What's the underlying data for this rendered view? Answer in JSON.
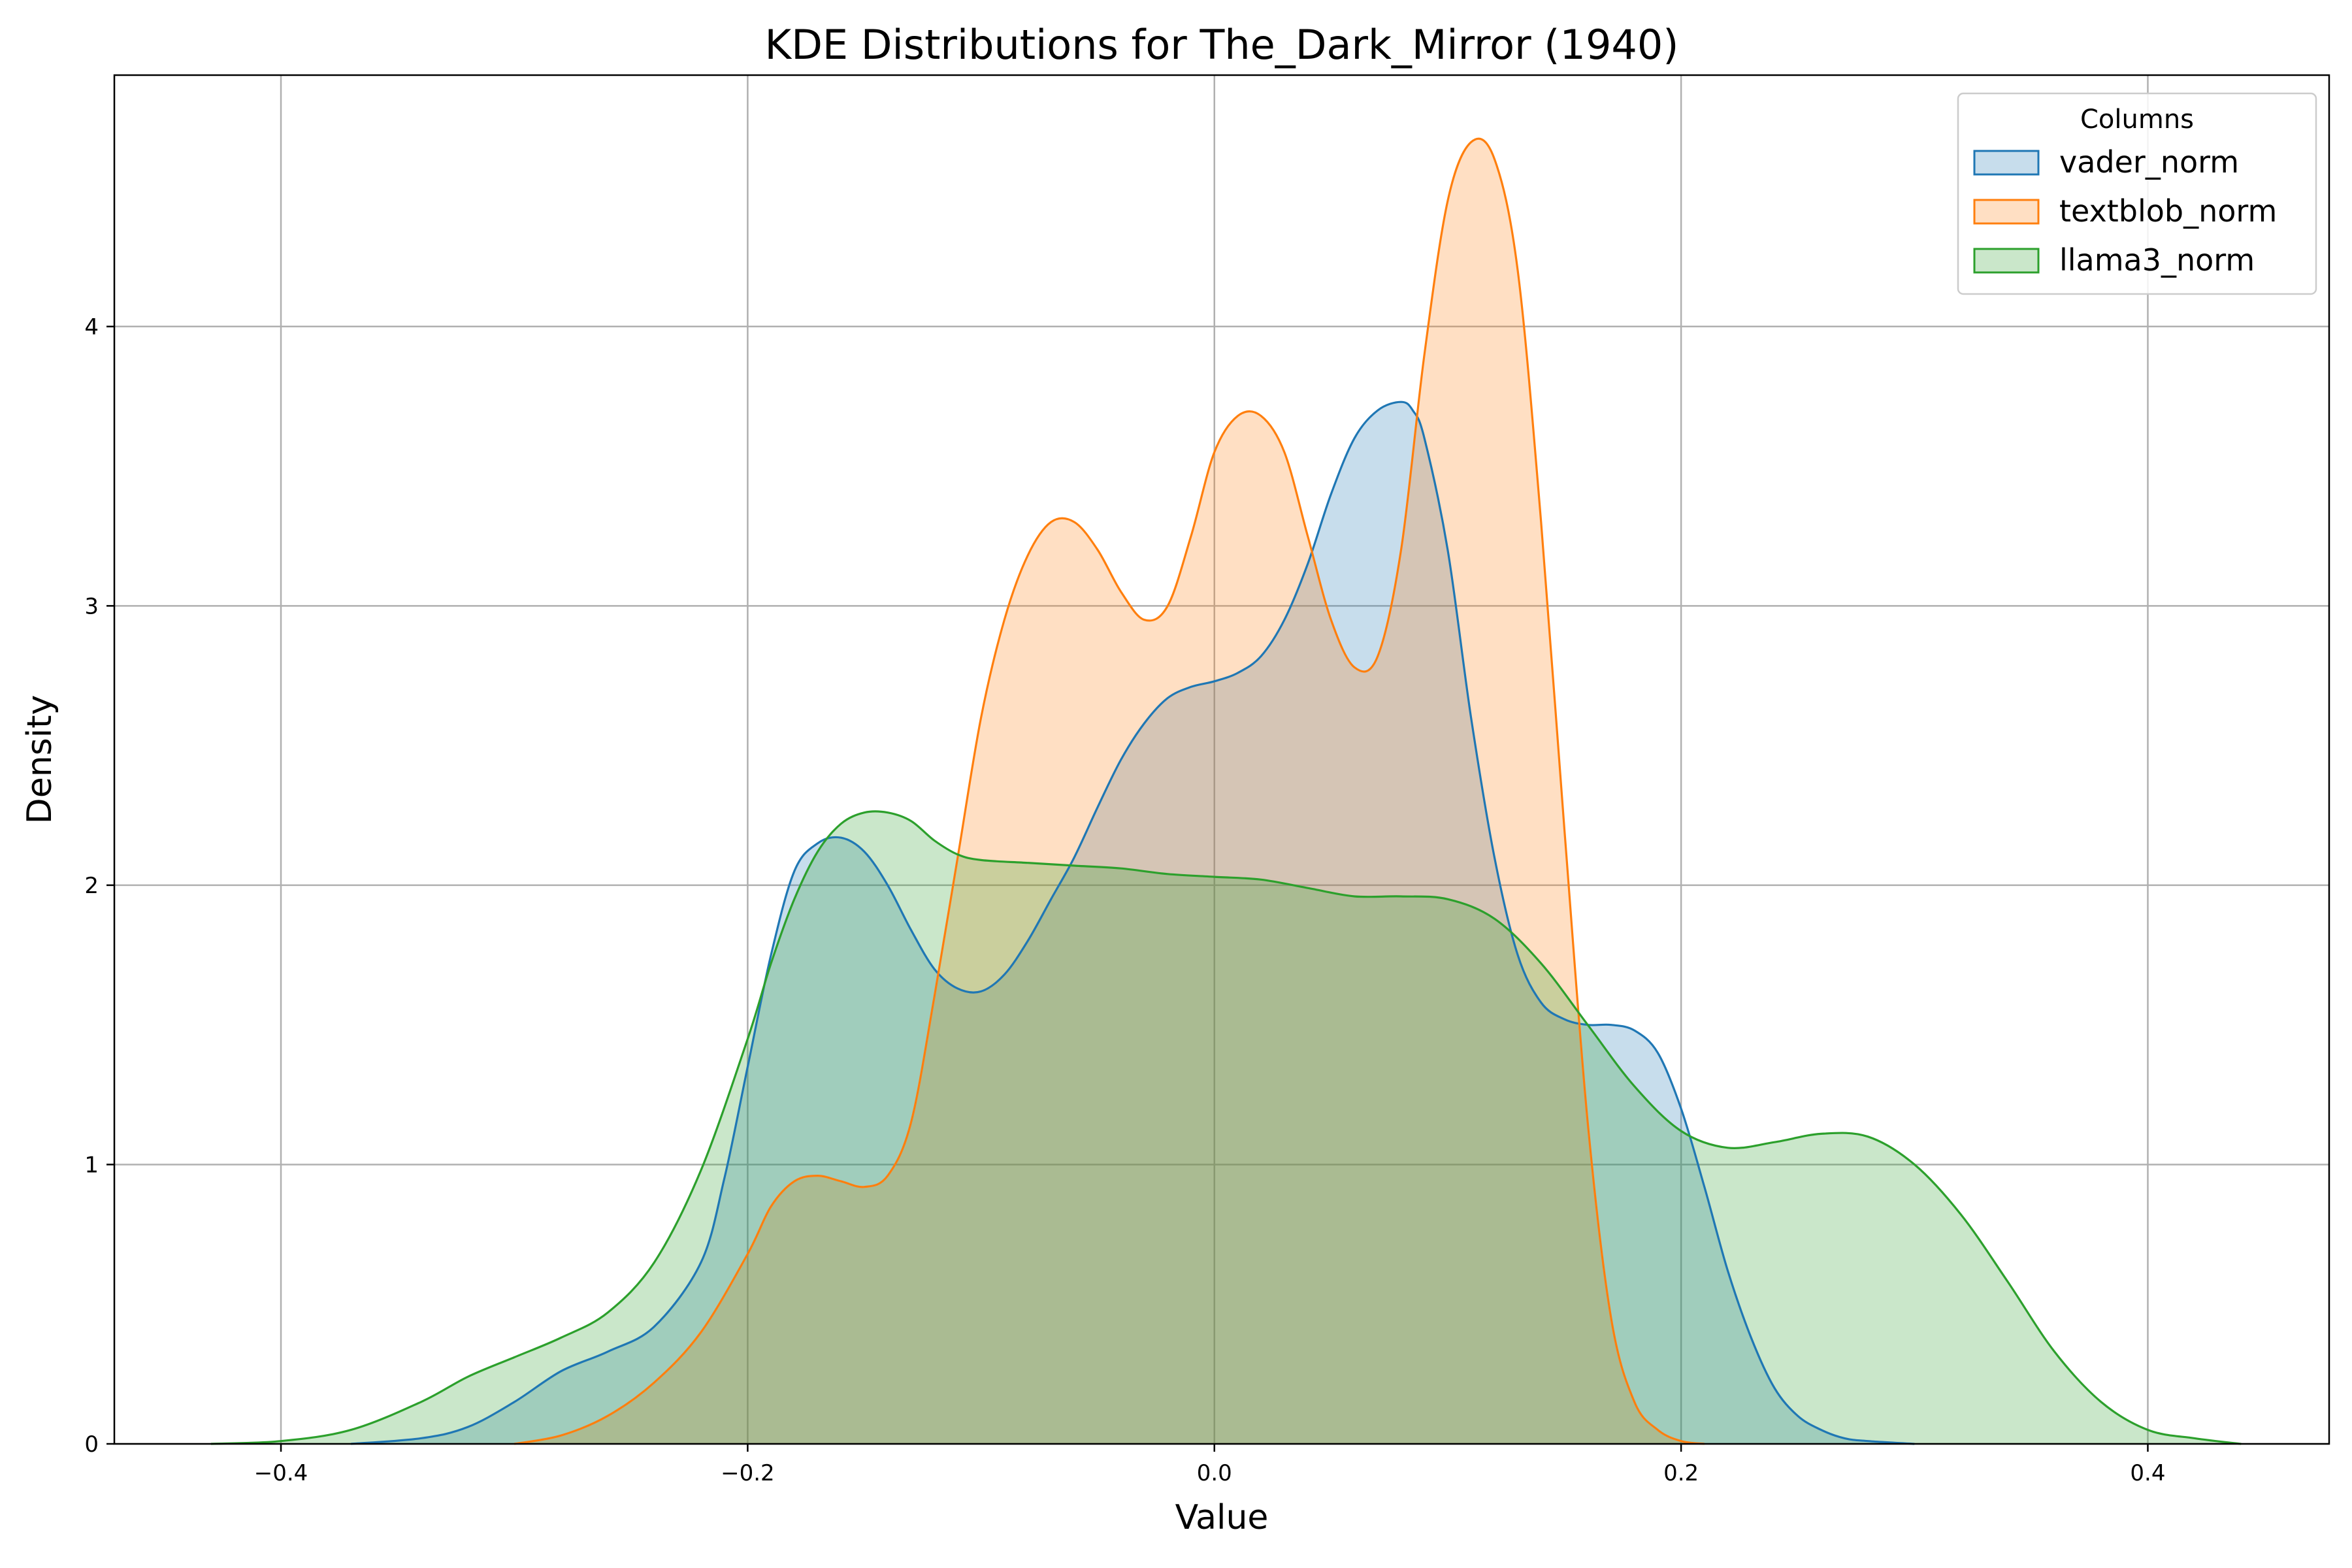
{
  "chart_data": {
    "type": "area",
    "title": "KDE Distributions for The_Dark_Mirror (1940)",
    "xlabel": "Value",
    "ylabel": "Density",
    "xlim": [
      -0.4714,
      0.4777
    ],
    "ylim": [
      0,
      4.9
    ],
    "xticks": [
      -0.4,
      -0.2,
      0.0,
      0.2,
      0.4
    ],
    "xtick_labels": [
      "−0.4",
      "−0.2",
      "0.0",
      "0.2",
      "0.4"
    ],
    "yticks": [
      0,
      1,
      2,
      3,
      4
    ],
    "ytick_labels": [
      "0",
      "1",
      "2",
      "3",
      "4"
    ],
    "grid": true,
    "legend": {
      "title": "Columns",
      "position": "top-right"
    },
    "series": [
      {
        "name": "vader_norm",
        "color": "#1f77b4",
        "x": [
          -0.37,
          -0.34,
          -0.32,
          -0.3,
          -0.28,
          -0.26,
          -0.24,
          -0.22,
          -0.21,
          -0.2,
          -0.19,
          -0.18,
          -0.17,
          -0.16,
          -0.15,
          -0.14,
          -0.13,
          -0.12,
          -0.11,
          -0.1,
          -0.09,
          -0.08,
          -0.07,
          -0.06,
          -0.05,
          -0.04,
          -0.03,
          -0.02,
          -0.01,
          0.0,
          0.01,
          0.02,
          0.03,
          0.04,
          0.05,
          0.06,
          0.07,
          0.08,
          0.085,
          0.09,
          0.1,
          0.11,
          0.12,
          0.13,
          0.14,
          0.15,
          0.16,
          0.17,
          0.18,
          0.19,
          0.2,
          0.21,
          0.22,
          0.23,
          0.24,
          0.25,
          0.26,
          0.27,
          0.28,
          0.3
        ],
        "y": [
          0.0,
          0.02,
          0.06,
          0.15,
          0.26,
          0.33,
          0.42,
          0.65,
          0.95,
          1.35,
          1.75,
          2.05,
          2.15,
          2.17,
          2.12,
          2.0,
          1.84,
          1.7,
          1.63,
          1.62,
          1.68,
          1.8,
          1.95,
          2.1,
          2.28,
          2.45,
          2.58,
          2.67,
          2.71,
          2.73,
          2.76,
          2.82,
          2.95,
          3.15,
          3.4,
          3.6,
          3.7,
          3.73,
          3.7,
          3.6,
          3.2,
          2.6,
          2.1,
          1.75,
          1.58,
          1.52,
          1.5,
          1.5,
          1.48,
          1.4,
          1.2,
          0.92,
          0.62,
          0.38,
          0.2,
          0.1,
          0.05,
          0.02,
          0.01,
          0.0
        ]
      },
      {
        "name": "textblob_norm",
        "color": "#ff7f0e",
        "x": [
          -0.3,
          -0.28,
          -0.26,
          -0.24,
          -0.22,
          -0.2,
          -0.19,
          -0.18,
          -0.17,
          -0.16,
          -0.15,
          -0.14,
          -0.13,
          -0.12,
          -0.11,
          -0.1,
          -0.09,
          -0.08,
          -0.07,
          -0.06,
          -0.05,
          -0.04,
          -0.03,
          -0.02,
          -0.01,
          0.0,
          0.01,
          0.02,
          0.03,
          0.04,
          0.05,
          0.06,
          0.07,
          0.08,
          0.09,
          0.1,
          0.11,
          0.12,
          0.13,
          0.14,
          0.15,
          0.16,
          0.17,
          0.18,
          0.19,
          0.2,
          0.21
        ],
        "y": [
          0.0,
          0.03,
          0.1,
          0.22,
          0.4,
          0.68,
          0.85,
          0.94,
          0.96,
          0.94,
          0.92,
          0.96,
          1.15,
          1.6,
          2.1,
          2.6,
          2.95,
          3.18,
          3.3,
          3.3,
          3.2,
          3.05,
          2.95,
          3.0,
          3.25,
          3.55,
          3.68,
          3.68,
          3.55,
          3.25,
          2.95,
          2.78,
          2.82,
          3.2,
          3.9,
          4.45,
          4.66,
          4.6,
          4.2,
          3.3,
          2.2,
          1.15,
          0.45,
          0.15,
          0.05,
          0.01,
          0.0
        ]
      },
      {
        "name": "llama3_norm",
        "color": "#2ca02c",
        "x": [
          -0.43,
          -0.4,
          -0.37,
          -0.34,
          -0.32,
          -0.3,
          -0.28,
          -0.26,
          -0.24,
          -0.22,
          -0.2,
          -0.19,
          -0.18,
          -0.17,
          -0.16,
          -0.15,
          -0.14,
          -0.13,
          -0.12,
          -0.11,
          -0.1,
          -0.08,
          -0.06,
          -0.04,
          -0.02,
          0.0,
          0.02,
          0.04,
          0.06,
          0.08,
          0.1,
          0.12,
          0.14,
          0.16,
          0.18,
          0.2,
          0.22,
          0.24,
          0.26,
          0.28,
          0.3,
          0.32,
          0.34,
          0.36,
          0.38,
          0.4,
          0.42,
          0.44
        ],
        "y": [
          0.0,
          0.01,
          0.05,
          0.15,
          0.24,
          0.31,
          0.38,
          0.47,
          0.65,
          0.98,
          1.45,
          1.72,
          1.95,
          2.12,
          2.22,
          2.26,
          2.26,
          2.23,
          2.16,
          2.11,
          2.09,
          2.08,
          2.07,
          2.06,
          2.04,
          2.03,
          2.02,
          1.99,
          1.96,
          1.96,
          1.95,
          1.88,
          1.72,
          1.5,
          1.28,
          1.12,
          1.06,
          1.08,
          1.11,
          1.1,
          1.0,
          0.82,
          0.58,
          0.33,
          0.15,
          0.05,
          0.02,
          0.0
        ]
      }
    ]
  }
}
